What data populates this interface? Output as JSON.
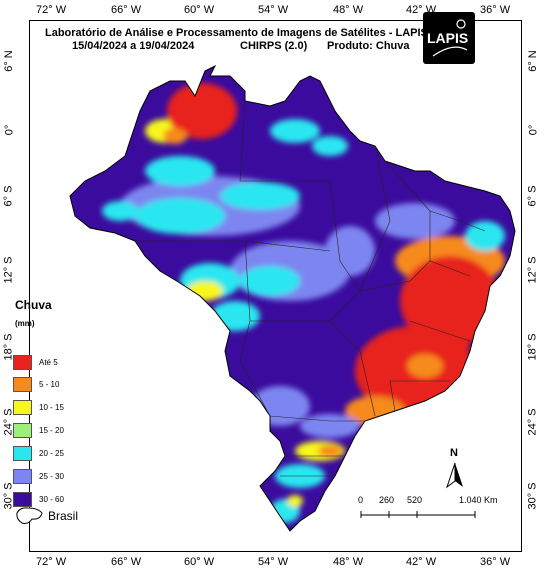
{
  "header": {
    "line1": "Laboratório de Análise e Processamento de Imagens de Satélites - LAPIS",
    "dates": "15/04/2024  a  19/04/2024",
    "product_source": "CHIRPS (2.0)",
    "product": "Produto: Chuva"
  },
  "logo": {
    "text": "LAPIS"
  },
  "axes": {
    "lon_labels": [
      "72° W",
      "66° W",
      "60° W",
      "54° W",
      "48° W",
      "42° W",
      "36° W"
    ],
    "lat_labels": [
      "6° N",
      "0°",
      "6° S",
      "12° S",
      "18° S",
      "24° S",
      "30° S"
    ]
  },
  "legend": {
    "title": "Chuva",
    "unit": "(mm)",
    "items": [
      {
        "label": "Até 5",
        "color": "#e8231e"
      },
      {
        "label": "5 - 10",
        "color": "#f68a1f"
      },
      {
        "label": "10 - 15",
        "color": "#f7f71a"
      },
      {
        "label": "15 - 20",
        "color": "#9cf07a"
      },
      {
        "label": "20 - 25",
        "color": "#29e6f0"
      },
      {
        "label": "25 - 30",
        "color": "#7d86f0"
      },
      {
        "label": "30 - 60",
        "color": "#3b0b9e"
      }
    ]
  },
  "boundary_legend": {
    "label": "Brasil"
  },
  "scale_bar": {
    "labels": [
      "0",
      "260",
      "520",
      "1.040 Km"
    ]
  },
  "north_arrow": {
    "letter": "N"
  }
}
